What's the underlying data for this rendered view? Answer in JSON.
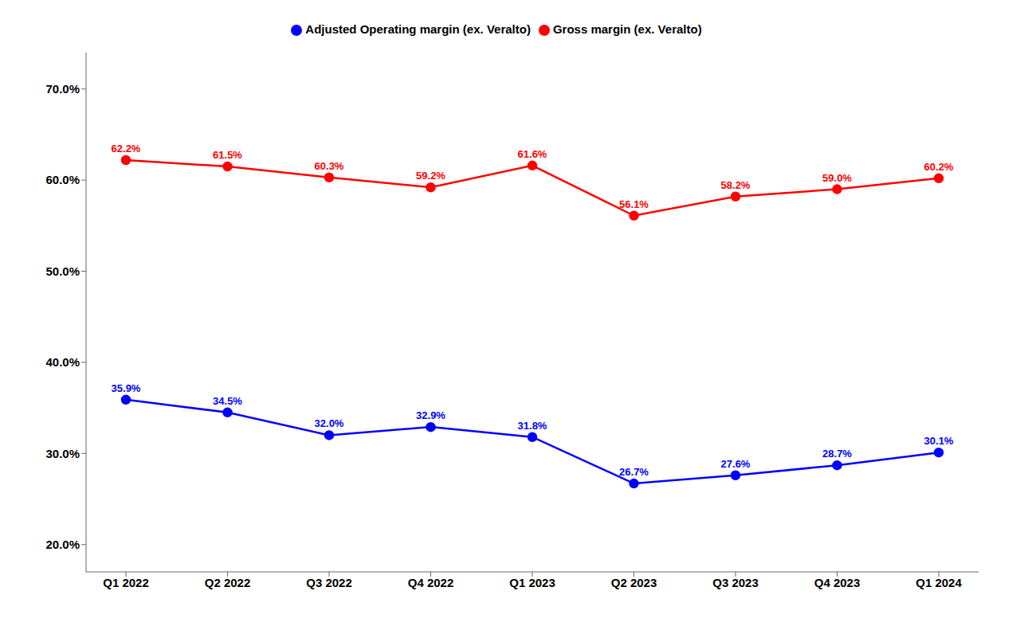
{
  "chart_data": {
    "type": "line",
    "categories": [
      "Q1 2022",
      "Q2 2022",
      "Q3 2022",
      "Q4 2022",
      "Q1 2023",
      "Q2 2023",
      "Q3 2023",
      "Q4 2023",
      "Q1 2024"
    ],
    "series": [
      {
        "name": "Adjusted Operating margin (ex. Veralto)",
        "color": "#0000ff",
        "marker": "circle",
        "values": [
          35.9,
          34.5,
          32.0,
          32.9,
          31.8,
          26.7,
          27.6,
          28.7,
          30.1
        ],
        "value_labels": [
          "35.9%",
          "34.5%",
          "32.0%",
          "32.9%",
          "31.8%",
          "26.7%",
          "27.6%",
          "28.7%",
          "30.1%"
        ]
      },
      {
        "name": "Gross margin (ex. Veralto)",
        "color": "#ff0000",
        "marker": "circle",
        "values": [
          62.2,
          61.5,
          60.3,
          59.2,
          61.6,
          56.1,
          58.2,
          59.0,
          60.2
        ],
        "value_labels": [
          "62.2%",
          "61.5%",
          "60.3%",
          "59.2%",
          "61.6%",
          "56.1%",
          "58.2%",
          "59.0%",
          "60.2%"
        ]
      }
    ],
    "ylim": [
      17,
      74
    ],
    "yticks": [
      {
        "value": 20.0,
        "label": "20.0%"
      },
      {
        "value": 30.0,
        "label": "30.0%"
      },
      {
        "value": 40.0,
        "label": "40.0%"
      },
      {
        "value": 50.0,
        "label": "50.0%"
      },
      {
        "value": 60.0,
        "label": "60.0%"
      },
      {
        "value": 70.0,
        "label": "70.0%"
      }
    ],
    "grid": false,
    "legend": "top",
    "data_labels": true
  }
}
